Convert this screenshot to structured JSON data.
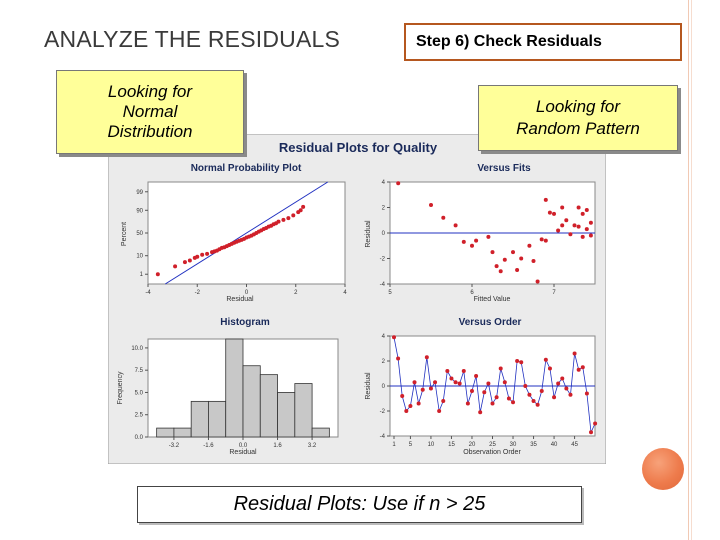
{
  "slide": {
    "title": "ANALYZE THE RESIDUALS",
    "step_label": "Step 6)  Check Residuals",
    "callout_left": [
      "Looking for",
      "Normal",
      "Distribution"
    ],
    "callout_right": [
      "Looking for",
      "Random Pattern"
    ],
    "bottom_note": "Residual Plots:  Use if  n > 25"
  },
  "colors": {
    "accent": "#b5571f",
    "callout_bg": "#ffff99",
    "point": "#d0202a",
    "fit_line": "#2030c0",
    "bar_fill": "#c8c8c8",
    "panel_bg": "#e6e6e6"
  },
  "chart_data": [
    {
      "type": "scatter",
      "title": "Normal Probability Plot",
      "suptitle": "Residual Plots for Quality",
      "xlabel": "Residual",
      "ylabel": "Percent",
      "xlim": [
        -4,
        4
      ],
      "xticks": [
        "-4",
        "-2",
        "0",
        "2",
        "4"
      ],
      "yticks": [
        "1",
        "10",
        "50",
        "90",
        "99"
      ],
      "y_scale": "normal-probability",
      "points": [
        [
          -3.6,
          1
        ],
        [
          -2.9,
          3
        ],
        [
          -2.5,
          5
        ],
        [
          -2.3,
          6
        ],
        [
          -2.1,
          8
        ],
        [
          -2.0,
          9
        ],
        [
          -1.8,
          11
        ],
        [
          -1.6,
          12
        ],
        [
          -1.4,
          14
        ],
        [
          -1.3,
          15
        ],
        [
          -1.2,
          16
        ],
        [
          -1.1,
          18
        ],
        [
          -1.0,
          20
        ],
        [
          -0.9,
          21
        ],
        [
          -0.8,
          23
        ],
        [
          -0.7,
          25
        ],
        [
          -0.6,
          27
        ],
        [
          -0.5,
          29
        ],
        [
          -0.4,
          31
        ],
        [
          -0.3,
          33
        ],
        [
          -0.2,
          35
        ],
        [
          -0.1,
          37
        ],
        [
          0.0,
          40
        ],
        [
          0.1,
          42
        ],
        [
          0.2,
          44
        ],
        [
          0.3,
          47
        ],
        [
          0.4,
          50
        ],
        [
          0.5,
          53
        ],
        [
          0.6,
          56
        ],
        [
          0.7,
          59
        ],
        [
          0.8,
          61
        ],
        [
          0.9,
          64
        ],
        [
          1.0,
          66
        ],
        [
          1.1,
          69
        ],
        [
          1.2,
          71
        ],
        [
          1.3,
          74
        ],
        [
          1.5,
          77
        ],
        [
          1.7,
          80
        ],
        [
          1.9,
          84
        ],
        [
          2.1,
          88
        ],
        [
          2.2,
          90
        ],
        [
          2.3,
          93
        ]
      ]
    },
    {
      "type": "scatter",
      "title": "Versus Fits",
      "xlabel": "Fitted Value",
      "ylabel": "Residual",
      "xlim": [
        5,
        7.5
      ],
      "ylim": [
        -4,
        4
      ],
      "xticks": [
        "5",
        "6",
        "7"
      ],
      "yticks": [
        "-4",
        "-2",
        "0",
        "2",
        "4"
      ],
      "points": [
        [
          5.1,
          3.9
        ],
        [
          5.5,
          2.2
        ],
        [
          5.65,
          1.2
        ],
        [
          5.8,
          0.6
        ],
        [
          5.9,
          -0.7
        ],
        [
          6.0,
          -1.0
        ],
        [
          6.05,
          -0.6
        ],
        [
          6.2,
          -0.3
        ],
        [
          6.25,
          -1.5
        ],
        [
          6.3,
          -2.6
        ],
        [
          6.35,
          -3.0
        ],
        [
          6.4,
          -2.1
        ],
        [
          6.5,
          -1.5
        ],
        [
          6.55,
          -2.9
        ],
        [
          6.6,
          -2.0
        ],
        [
          6.7,
          -1.0
        ],
        [
          6.75,
          -2.2
        ],
        [
          6.8,
          -3.8
        ],
        [
          6.85,
          -0.5
        ],
        [
          6.9,
          -0.6
        ],
        [
          6.95,
          1.6
        ],
        [
          6.9,
          2.6
        ],
        [
          7.0,
          1.5
        ],
        [
          7.05,
          0.2
        ],
        [
          7.1,
          0.6
        ],
        [
          7.1,
          2.0
        ],
        [
          7.15,
          1.0
        ],
        [
          7.2,
          -0.1
        ],
        [
          7.25,
          0.6
        ],
        [
          7.3,
          2.0
        ],
        [
          7.35,
          -0.3
        ],
        [
          7.4,
          1.8
        ],
        [
          7.45,
          0.8
        ],
        [
          7.45,
          -0.2
        ],
        [
          7.4,
          0.3
        ],
        [
          7.35,
          1.5
        ],
        [
          7.3,
          0.5
        ]
      ]
    },
    {
      "type": "bar",
      "title": "Histogram",
      "xlabel": "Residual",
      "ylabel": "Frequency",
      "xticks": [
        "-3.2",
        "-1.6",
        "0.0",
        "1.6",
        "3.2"
      ],
      "yticks": [
        "0.0",
        "2.5",
        "5.0",
        "7.5",
        "10.0"
      ],
      "ylim": [
        0,
        11
      ],
      "bin_width": 0.8,
      "bin_left_edges": [
        -4.0,
        -3.2,
        -2.4,
        -1.6,
        -0.8,
        0.0,
        0.8,
        1.6,
        2.4,
        3.2
      ],
      "values": [
        1,
        1,
        4,
        4,
        11,
        8,
        7,
        5,
        6,
        1
      ]
    },
    {
      "type": "line",
      "title": "Versus Order",
      "xlabel": "Observation Order",
      "ylabel": "Residual",
      "xticks": [
        "1",
        "5",
        "10",
        "15",
        "20",
        "25",
        "30",
        "35",
        "40",
        "45"
      ],
      "yticks": [
        "-4",
        "-2",
        "0",
        "2",
        "4"
      ],
      "xlim": [
        1,
        49
      ],
      "ylim": [
        -4,
        4
      ],
      "values": [
        3.9,
        2.2,
        -0.8,
        -2.0,
        -1.6,
        0.3,
        -1.4,
        -0.3,
        2.3,
        -0.2,
        0.3,
        -2.0,
        -1.2,
        1.2,
        0.6,
        0.3,
        0.2,
        1.2,
        -1.4,
        -0.4,
        0.8,
        -2.1,
        -0.5,
        0.2,
        -1.4,
        -0.9,
        1.4,
        0.3,
        -1.0,
        -1.3,
        2.0,
        1.9,
        0.0,
        -0.7,
        -1.2,
        -1.5,
        -0.4,
        2.1,
        1.4,
        -0.9,
        0.2,
        0.6,
        -0.2,
        -0.7,
        2.6,
        1.3,
        1.5,
        -0.6,
        -3.7,
        -3.0
      ]
    }
  ]
}
